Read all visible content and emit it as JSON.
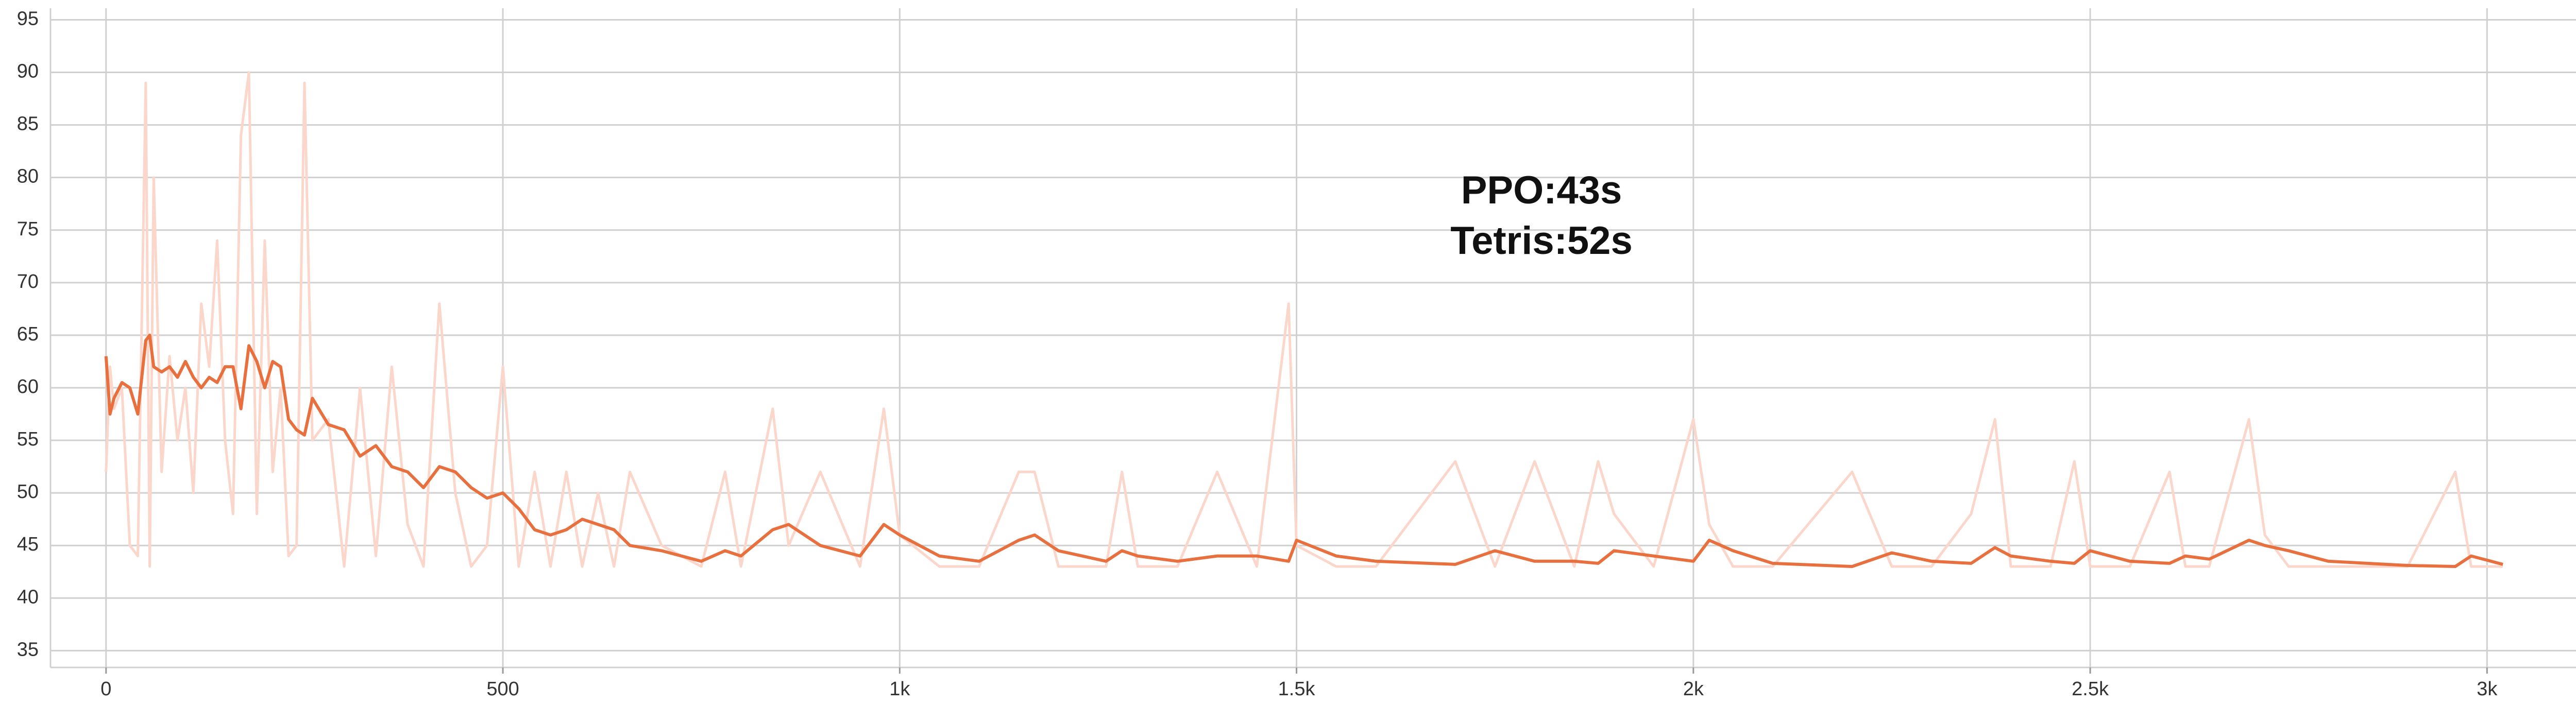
{
  "chart_data": {
    "type": "line",
    "annotations": [
      "PPO:43s",
      "Tetris:52s"
    ],
    "x": [
      0,
      5,
      10,
      20,
      30,
      40,
      50,
      55,
      60,
      70,
      80,
      90,
      100,
      110,
      120,
      130,
      140,
      150,
      160,
      170,
      180,
      190,
      200,
      210,
      220,
      230,
      240,
      250,
      260,
      280,
      300,
      320,
      340,
      360,
      380,
      400,
      420,
      440,
      460,
      480,
      500,
      520,
      540,
      560,
      580,
      600,
      620,
      640,
      660,
      700,
      750,
      780,
      800,
      840,
      860,
      900,
      950,
      980,
      1000,
      1050,
      1100,
      1150,
      1170,
      1200,
      1260,
      1280,
      1300,
      1350,
      1400,
      1450,
      1490,
      1500,
      1550,
      1600,
      1700,
      1750,
      1800,
      1850,
      1880,
      1900,
      1950,
      2000,
      2020,
      2050,
      2100,
      2200,
      2250,
      2300,
      2350,
      2380,
      2400,
      2450,
      2480,
      2500,
      2550,
      2600,
      2620,
      2650,
      2700,
      2720,
      2750,
      2800,
      2900,
      2960,
      2980,
      3020
    ],
    "series": [
      {
        "color": "#fbd6ca",
        "values": [
          52,
          62,
          58,
          60,
          45,
          44,
          89,
          43,
          80,
          52,
          63,
          55,
          60,
          50,
          68,
          62,
          74,
          55,
          48,
          84,
          90,
          48,
          74,
          52,
          60,
          44,
          45,
          89,
          55,
          57,
          43,
          60,
          44,
          62,
          47,
          43,
          68,
          50,
          43,
          45,
          62,
          43,
          52,
          43,
          52,
          43,
          50,
          43,
          52,
          45,
          43,
          52,
          43,
          58,
          45,
          52,
          43,
          58,
          46,
          43,
          43,
          52,
          52,
          43,
          43,
          52,
          43,
          43,
          52,
          43,
          68,
          45,
          43,
          43,
          53,
          43,
          53,
          43,
          53,
          48,
          43,
          57,
          47,
          43,
          43,
          52,
          43,
          43,
          48,
          57,
          43,
          43,
          53,
          43,
          43,
          52,
          43,
          43,
          57,
          46,
          43,
          43,
          43,
          52,
          43,
          43
        ]
      },
      {
        "color": "#e8703f",
        "values": [
          63,
          57.5,
          59,
          60.5,
          60,
          57.5,
          64.5,
          65,
          62,
          61.5,
          62,
          61,
          62.5,
          61,
          60,
          61,
          60.5,
          62,
          62,
          58,
          64,
          62.5,
          60,
          62.5,
          62,
          57,
          56,
          55.5,
          59,
          56.5,
          56,
          53.5,
          54.5,
          52.5,
          52,
          50.5,
          52.5,
          52,
          50.5,
          49.5,
          50,
          48.5,
          46.5,
          46,
          46.5,
          47.5,
          47,
          46.5,
          45,
          44.5,
          43.5,
          44.5,
          44,
          46.5,
          47,
          45,
          44,
          47,
          46,
          44,
          43.5,
          45.5,
          46,
          44.5,
          43.5,
          44.5,
          44,
          43.5,
          44,
          44,
          43.5,
          45.5,
          44,
          43.5,
          43.2,
          44.5,
          43.5,
          43.5,
          43.3,
          44.5,
          44,
          43.5,
          45.5,
          44.5,
          43.3,
          43,
          44.3,
          43.5,
          43.3,
          44.8,
          44,
          43.5,
          43.3,
          44.5,
          43.5,
          43.3,
          44,
          43.7,
          45.5,
          45,
          44.5,
          43.5,
          43.1,
          43,
          44,
          43.2
        ]
      }
    ],
    "xlim": [
      -70,
      3190
    ],
    "ylim": [
      33.4,
      96.1
    ],
    "xticks": [
      0,
      500,
      {
        "value": 1000,
        "label": "1k"
      },
      {
        "value": 1500,
        "label": "1.5k"
      },
      {
        "value": 2000,
        "label": "2k"
      },
      {
        "value": 2500,
        "label": "2.5k"
      },
      {
        "value": 3000,
        "label": "3k"
      }
    ],
    "yticks": [
      35,
      40,
      45,
      50,
      55,
      60,
      65,
      70,
      75,
      80,
      85,
      90,
      95
    ],
    "grid": true
  }
}
